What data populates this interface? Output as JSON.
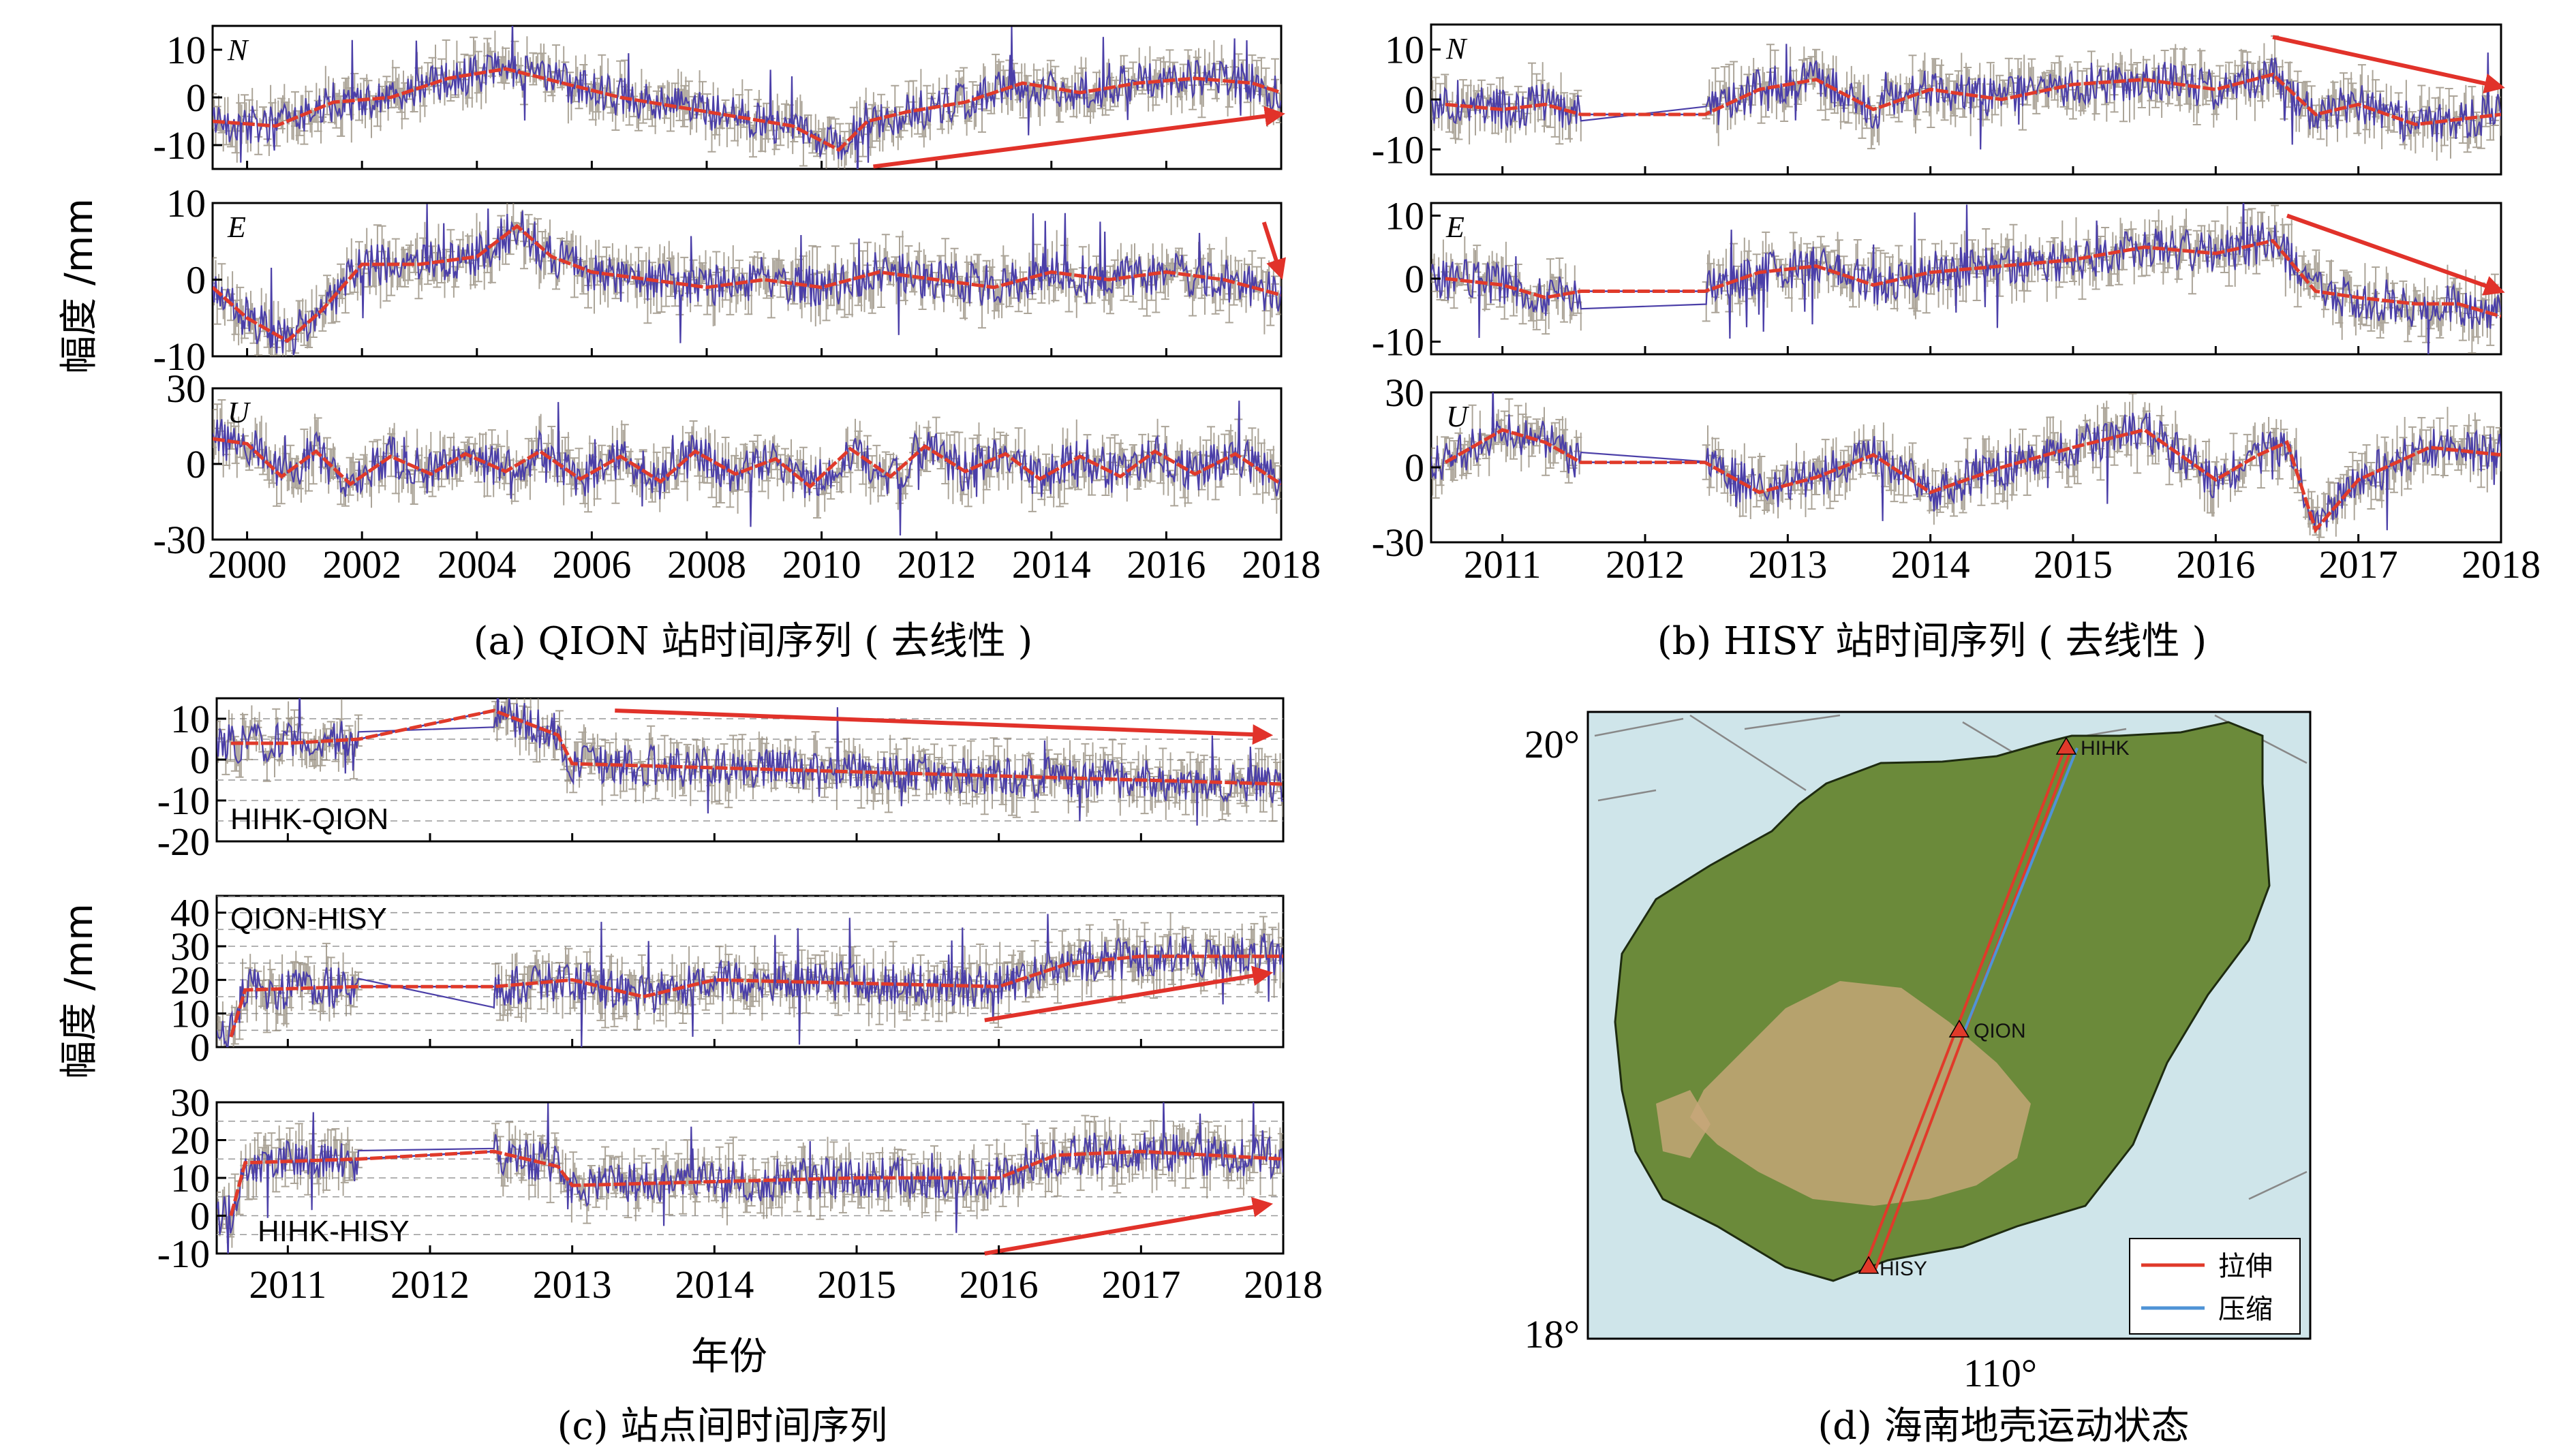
{
  "colors": {
    "band": "#8f8575",
    "series": "#4b3fa8",
    "trend": "#e03a2a",
    "arrow": "#e1322a",
    "compress": "#4f93d6",
    "land": "#6b8a3a",
    "highland": "#c9a77a",
    "sea": "#cfe5ea"
  },
  "ylabel": "幅度 /mm",
  "xlabel": "年份",
  "captions": {
    "a": "(a) QION 站时间序列 ( 去线性 )",
    "b": "(b) HISY 站时间序列 ( 去线性 )",
    "c": "(c) 站点间时间序列",
    "d": "(d) 海南地壳运动状态"
  },
  "chart_data": [
    {
      "id": "a",
      "type": "line",
      "title": "(a) QION 站时间序列 ( 去线性 )",
      "ylabel": "幅度 /mm",
      "xlim": [
        1999.4,
        2018.0
      ],
      "x_ticks": [
        2000,
        2002,
        2004,
        2006,
        2008,
        2010,
        2012,
        2014,
        2016,
        2018
      ],
      "panels": [
        {
          "component": "N",
          "ylim": [
            -15,
            15
          ],
          "y_ticks": [
            10,
            0,
            -10
          ],
          "gaps": [],
          "trend": [
            [
              1999.4,
              -5
            ],
            [
              2000.5,
              -6
            ],
            [
              2001.5,
              -1
            ],
            [
              2002.5,
              0
            ],
            [
              2003.5,
              4
            ],
            [
              2004.5,
              6
            ],
            [
              2005.5,
              3
            ],
            [
              2006.5,
              0
            ],
            [
              2007.5,
              -2
            ],
            [
              2008.5,
              -4
            ],
            [
              2009.5,
              -6
            ],
            [
              2010.3,
              -11
            ],
            [
              2010.8,
              -5
            ],
            [
              2011.5,
              -3
            ],
            [
              2012.5,
              -1
            ],
            [
              2013.5,
              3
            ],
            [
              2014.5,
              1
            ],
            [
              2015.5,
              3
            ],
            [
              2016.5,
              4
            ],
            [
              2017.5,
              3
            ],
            [
              2018.0,
              1
            ]
          ],
          "arrows": [
            {
              "from": [
                2010.9,
                -14.5
              ],
              "to": [
                2018.0,
                -3.5
              ]
            }
          ]
        },
        {
          "component": "E",
          "ylim": [
            -10,
            10
          ],
          "y_ticks": [
            10,
            0,
            -10
          ],
          "gaps": [],
          "trend": [
            [
              1999.4,
              -1
            ],
            [
              2000.0,
              -5
            ],
            [
              2000.7,
              -8
            ],
            [
              2001.3,
              -4
            ],
            [
              2002.0,
              2
            ],
            [
              2003.0,
              2
            ],
            [
              2004.0,
              3
            ],
            [
              2004.7,
              7
            ],
            [
              2005.3,
              3
            ],
            [
              2006.0,
              1
            ],
            [
              2007.0,
              0
            ],
            [
              2008.0,
              -1
            ],
            [
              2009.0,
              0
            ],
            [
              2010.0,
              -1
            ],
            [
              2011.0,
              1
            ],
            [
              2012.0,
              0
            ],
            [
              2013.0,
              -1
            ],
            [
              2014.0,
              1
            ],
            [
              2015.0,
              0
            ],
            [
              2016.0,
              1
            ],
            [
              2017.0,
              0
            ],
            [
              2018.0,
              -2
            ]
          ],
          "arrows": [
            {
              "from": [
                2017.7,
                7.5
              ],
              "to": [
                2018.0,
                0.5
              ]
            }
          ]
        },
        {
          "component": "U",
          "ylim": [
            -30,
            30
          ],
          "y_ticks": [
            30,
            0,
            -30
          ],
          "gaps": [],
          "trend": [
            [
              1999.4,
              10
            ],
            [
              2000.0,
              8
            ],
            [
              2000.6,
              -5
            ],
            [
              2001.2,
              5
            ],
            [
              2001.8,
              -8
            ],
            [
              2002.5,
              3
            ],
            [
              2003.2,
              -4
            ],
            [
              2003.8,
              4
            ],
            [
              2004.5,
              -3
            ],
            [
              2005.1,
              5
            ],
            [
              2005.8,
              -6
            ],
            [
              2006.5,
              3
            ],
            [
              2007.2,
              -7
            ],
            [
              2007.8,
              5
            ],
            [
              2008.5,
              -4
            ],
            [
              2009.2,
              2
            ],
            [
              2009.8,
              -9
            ],
            [
              2010.5,
              6
            ],
            [
              2011.2,
              -5
            ],
            [
              2011.8,
              7
            ],
            [
              2012.5,
              -3
            ],
            [
              2013.2,
              4
            ],
            [
              2013.8,
              -6
            ],
            [
              2014.5,
              3
            ],
            [
              2015.2,
              -5
            ],
            [
              2015.8,
              5
            ],
            [
              2016.5,
              -4
            ],
            [
              2017.2,
              4
            ],
            [
              2018.0,
              -8
            ]
          ],
          "arrows": []
        }
      ]
    },
    {
      "id": "b",
      "type": "line",
      "title": "(b) HISY 站时间序列 ( 去线性 )",
      "xlim": [
        2010.5,
        2018.0
      ],
      "x_ticks": [
        2011,
        2012,
        2013,
        2014,
        2015,
        2016,
        2017,
        2018
      ],
      "panels": [
        {
          "component": "N",
          "ylim": [
            -15,
            15
          ],
          "y_ticks": [
            10,
            0,
            -10
          ],
          "gaps": [
            [
              2011.55,
              2012.42
            ]
          ],
          "trend": [
            [
              2010.6,
              -1
            ],
            [
              2011.0,
              -2
            ],
            [
              2011.3,
              -1
            ],
            [
              2011.55,
              -3
            ],
            [
              2012.42,
              -3
            ],
            [
              2012.8,
              2
            ],
            [
              2013.2,
              4
            ],
            [
              2013.6,
              -2
            ],
            [
              2014.0,
              2
            ],
            [
              2014.5,
              0
            ],
            [
              2015.0,
              3
            ],
            [
              2015.5,
              4
            ],
            [
              2016.0,
              2
            ],
            [
              2016.4,
              5
            ],
            [
              2016.7,
              -3
            ],
            [
              2017.0,
              -1
            ],
            [
              2017.4,
              -5
            ],
            [
              2017.7,
              -4
            ],
            [
              2018.0,
              -3
            ]
          ],
          "arrows": [
            {
              "from": [
                2016.4,
                12.5
              ],
              "to": [
                2018.0,
                2.5
              ]
            }
          ]
        },
        {
          "component": "E",
          "ylim": [
            -12,
            12
          ],
          "y_ticks": [
            10,
            0,
            -10
          ],
          "gaps": [
            [
              2011.55,
              2012.42
            ]
          ],
          "trend": [
            [
              2010.6,
              0
            ],
            [
              2011.0,
              -1
            ],
            [
              2011.3,
              -3
            ],
            [
              2011.55,
              -2
            ],
            [
              2012.42,
              -2
            ],
            [
              2012.8,
              1
            ],
            [
              2013.2,
              2
            ],
            [
              2013.6,
              -1
            ],
            [
              2014.0,
              1
            ],
            [
              2014.5,
              2
            ],
            [
              2015.0,
              3
            ],
            [
              2015.5,
              5
            ],
            [
              2016.0,
              4
            ],
            [
              2016.4,
              6
            ],
            [
              2016.7,
              -2
            ],
            [
              2017.0,
              -3
            ],
            [
              2017.4,
              -4
            ],
            [
              2017.7,
              -4
            ],
            [
              2018.0,
              -6
            ]
          ],
          "arrows": [
            {
              "from": [
                2016.5,
                10
              ],
              "to": [
                2018.0,
                -2
              ]
            }
          ]
        },
        {
          "component": "U",
          "ylim": [
            -30,
            30
          ],
          "y_ticks": [
            30,
            0,
            -30
          ],
          "gaps": [
            [
              2011.55,
              2012.42
            ]
          ],
          "trend": [
            [
              2010.6,
              2
            ],
            [
              2011.0,
              15
            ],
            [
              2011.3,
              10
            ],
            [
              2011.55,
              2
            ],
            [
              2012.42,
              2
            ],
            [
              2012.8,
              -10
            ],
            [
              2013.2,
              -4
            ],
            [
              2013.6,
              5
            ],
            [
              2014.0,
              -10
            ],
            [
              2014.5,
              0
            ],
            [
              2015.0,
              8
            ],
            [
              2015.5,
              15
            ],
            [
              2016.0,
              -5
            ],
            [
              2016.3,
              5
            ],
            [
              2016.5,
              10
            ],
            [
              2016.7,
              -25
            ],
            [
              2017.0,
              -5
            ],
            [
              2017.5,
              8
            ],
            [
              2018.0,
              5
            ]
          ],
          "arrows": []
        }
      ]
    },
    {
      "id": "c",
      "type": "line",
      "title": "(c) 站点间时间序列",
      "ylabel": "幅度 /mm",
      "xlabel": "年份",
      "xlim": [
        2010.5,
        2018.0
      ],
      "x_ticks": [
        2011,
        2012,
        2013,
        2014,
        2015,
        2016,
        2017,
        2018
      ],
      "panels": [
        {
          "component": "HIHK-QION",
          "ylim": [
            -20,
            15
          ],
          "y_ticks": [
            10,
            0,
            -10,
            -20
          ],
          "grid": [
            10,
            5,
            0,
            -5,
            -10,
            -15
          ],
          "gaps": [
            [
              2011.5,
              2012.45
            ]
          ],
          "trend": [
            [
              2010.6,
              4
            ],
            [
              2011.0,
              4
            ],
            [
              2011.5,
              5
            ],
            [
              2012.45,
              12
            ],
            [
              2012.9,
              6
            ],
            [
              2013.0,
              -1
            ],
            [
              2014.0,
              -2
            ],
            [
              2015.0,
              -3
            ],
            [
              2016.0,
              -4
            ],
            [
              2017.0,
              -5
            ],
            [
              2018.0,
              -6
            ]
          ],
          "arrows": [
            {
              "from": [
                2013.3,
                12
              ],
              "to": [
                2017.9,
                6
              ]
            }
          ]
        },
        {
          "component": "QION-HISY",
          "ylim": [
            0,
            45
          ],
          "y_ticks": [
            40,
            30,
            20,
            10,
            0
          ],
          "grid": [
            45,
            40,
            35,
            30,
            25,
            20,
            15,
            10,
            5
          ],
          "gaps": [
            [
              2011.5,
              2012.45
            ]
          ],
          "trend": [
            [
              2010.6,
              3
            ],
            [
              2010.7,
              17
            ],
            [
              2011.5,
              18
            ],
            [
              2012.45,
              18
            ],
            [
              2013.0,
              20
            ],
            [
              2013.5,
              15
            ],
            [
              2014.0,
              20
            ],
            [
              2015.0,
              19
            ],
            [
              2016.0,
              18
            ],
            [
              2016.5,
              25
            ],
            [
              2017.0,
              27
            ],
            [
              2018.0,
              27
            ]
          ],
          "arrows": [
            {
              "from": [
                2015.9,
                8
              ],
              "to": [
                2017.9,
                22
              ]
            }
          ]
        },
        {
          "component": "HIHK-HISY",
          "ylim": [
            -10,
            30
          ],
          "y_ticks": [
            30,
            20,
            10,
            0,
            -10
          ],
          "grid": [
            25,
            20,
            15,
            10,
            5,
            0,
            -5
          ],
          "gaps": [
            [
              2011.5,
              2012.45
            ]
          ],
          "trend": [
            [
              2010.6,
              0
            ],
            [
              2010.7,
              14
            ],
            [
              2011.5,
              15
            ],
            [
              2012.45,
              17
            ],
            [
              2012.9,
              13
            ],
            [
              2013.0,
              8
            ],
            [
              2014.0,
              9
            ],
            [
              2015.0,
              10
            ],
            [
              2016.0,
              10
            ],
            [
              2016.4,
              16
            ],
            [
              2017.0,
              17
            ],
            [
              2018.0,
              15
            ]
          ],
          "arrows": [
            {
              "from": [
                2015.9,
                -10
              ],
              "to": [
                2017.9,
                3
              ]
            }
          ]
        }
      ]
    },
    {
      "id": "d",
      "type": "map",
      "title": "(d) 海南地壳运动状态",
      "lat_ticks": [
        "20°",
        "18°"
      ],
      "lon_ticks": [
        "110°"
      ],
      "stations": [
        {
          "name": "HIHK",
          "lon": 110.3,
          "lat": 20.0
        },
        {
          "name": "QION",
          "lon": 109.85,
          "lat": 19.0
        },
        {
          "name": "HISY",
          "lon": 109.5,
          "lat": 18.2
        }
      ],
      "legend": [
        {
          "label": "拉伸",
          "color": "#e03a2a"
        },
        {
          "label": "压缩",
          "color": "#4f93d6"
        }
      ]
    }
  ]
}
